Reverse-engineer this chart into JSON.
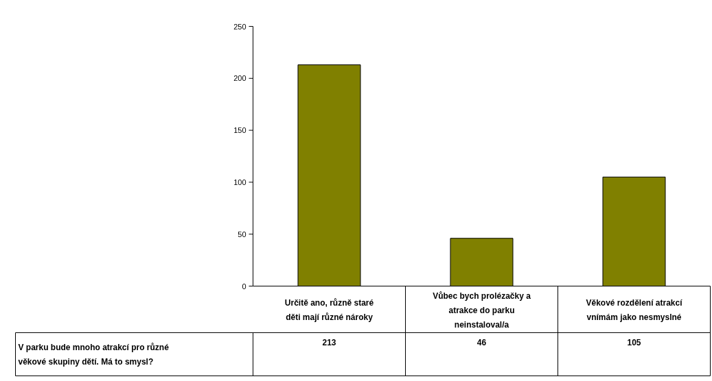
{
  "chart_data": {
    "type": "bar",
    "categories": [
      "Určitě ano, různě staré děti mají různé nároky",
      "Vůbec bych prolézačky a atrakce do parku neinstaloval/a",
      "Věkové rozdělení atrakcí vnímám jako nesmyslné"
    ],
    "series": [
      {
        "name": "V parku bude mnoho atrakcí pro různé věkové skupiny dětí. Má to smysl?",
        "color": "#808000",
        "values": [
          213,
          46,
          105
        ]
      }
    ],
    "ylim": [
      0,
      250
    ],
    "yticks": [
      0,
      50,
      100,
      150,
      200,
      250
    ],
    "grid": false,
    "legend": false,
    "data_labels": true
  }
}
